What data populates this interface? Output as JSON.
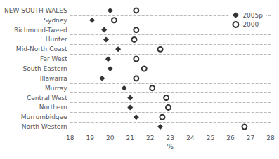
{
  "chart_data": {
    "type": "scatter",
    "orientation": "horizontal",
    "categories": [
      "NEW SOUTH WALES",
      "Sydney",
      "Richmond-Tweed",
      "Hunter",
      "Mid-North Coast",
      "Far West",
      "South Eastern",
      "Illawarra",
      "Murray",
      "Central West",
      "Northern",
      "Murrumbidgee",
      "North Western"
    ],
    "series": [
      {
        "name": "2005p",
        "color": "#000000",
        "marker": "diamond",
        "values": [
          20.0,
          19.1,
          19.7,
          19.8,
          20.4,
          19.9,
          20.0,
          19.6,
          20.7,
          21.0,
          21.0,
          21.3,
          22.5
        ]
      },
      {
        "name": "2000",
        "color": "#000000",
        "marker": "circle",
        "values": [
          21.3,
          20.2,
          21.3,
          21.2,
          22.5,
          21.3,
          21.7,
          21.3,
          22.1,
          22.8,
          22.9,
          22.6,
          26.7
        ]
      }
    ],
    "xlabel": "%",
    "xlim": [
      18,
      28
    ],
    "xticks": [
      18,
      19,
      20,
      21,
      22,
      23,
      24,
      25,
      26,
      27,
      28
    ],
    "grid": true,
    "legend": "upper right"
  }
}
